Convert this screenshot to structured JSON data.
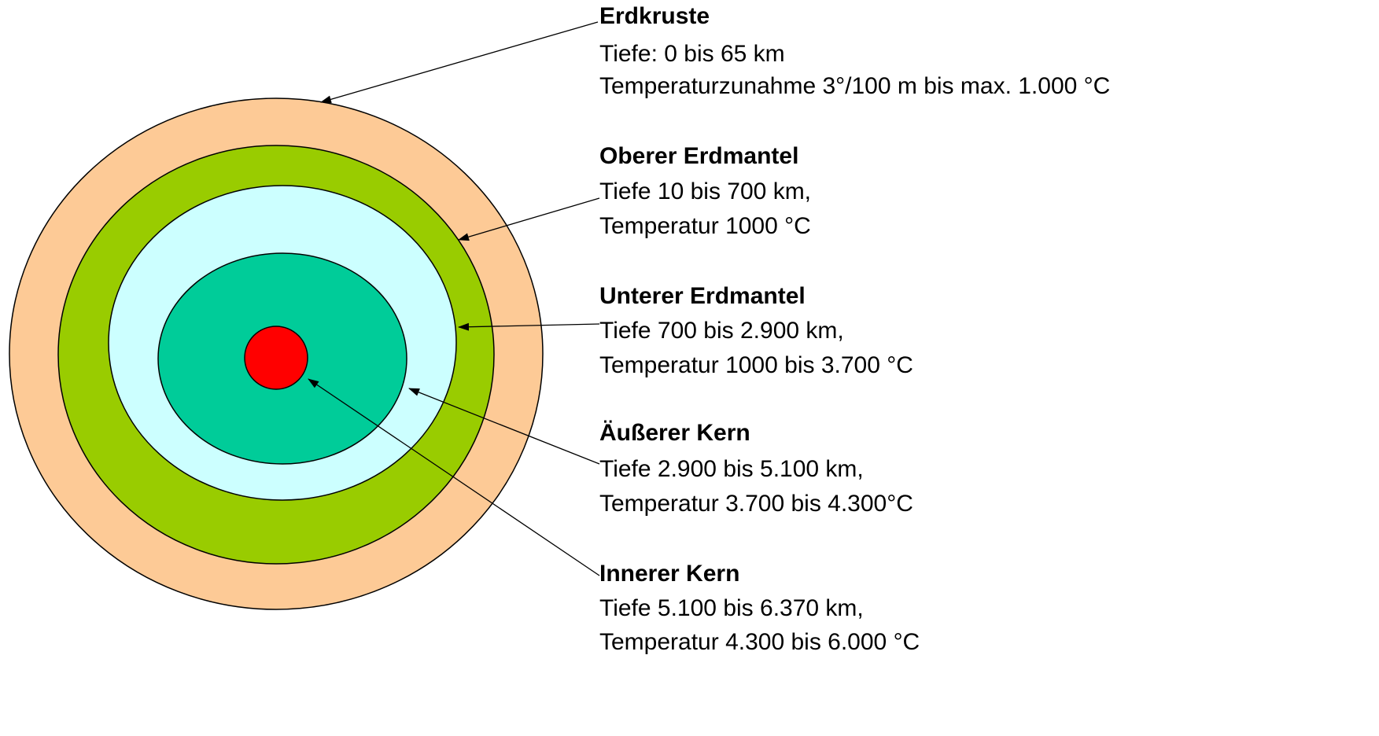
{
  "layers": [
    {
      "name": "Erdkruste",
      "lines": [
        "Tiefe: 0 bis 65 km",
        "Temperaturzunahme 3°/100 m bis max. 1.000 °C"
      ]
    },
    {
      "name": "Oberer Erdmantel",
      "lines": [
        "Tiefe 10 bis 700 km,",
        "Temperatur 1000 °C"
      ]
    },
    {
      "name": "Unterer Erdmantel",
      "lines": [
        "Tiefe 700 bis 2.900 km,",
        "Temperatur 1000 bis 3.700 °C"
      ]
    },
    {
      "name": "Äußerer Kern",
      "lines": [
        "Tiefe 2.900 bis 5.100 km,",
        "Temperatur 3.700 bis 4.300°C"
      ]
    },
    {
      "name": "Innerer Kern",
      "lines": [
        "Tiefe 5.100 bis 6.370 km,",
        "Temperatur 4.300 bis 6.000 °C"
      ]
    }
  ]
}
